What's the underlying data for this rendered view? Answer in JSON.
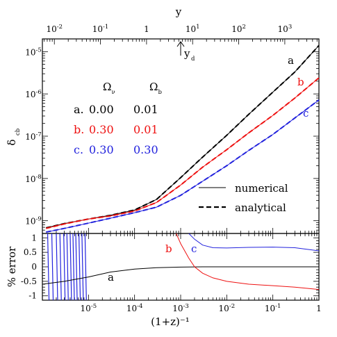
{
  "chart_data": [
    {
      "id": "top-panel",
      "type": "line",
      "xlabel": "(1+z)⁻¹",
      "ylabel": "δ",
      "ylabel_sub": "cb",
      "xscale": "log",
      "yscale": "log",
      "xlim": [
        1e-06,
        1.0
      ],
      "ylim": [
        5e-10,
        2e-05
      ],
      "x_ticklabels": [
        {
          "v": 1e-05,
          "base": "10",
          "exp": "-5"
        },
        {
          "v": 0.0001,
          "base": "10",
          "exp": "-4"
        },
        {
          "v": 0.001,
          "base": "10",
          "exp": "-3"
        },
        {
          "v": 0.01,
          "base": "10",
          "exp": "-2"
        },
        {
          "v": 0.1,
          "base": "10",
          "exp": "-1"
        },
        {
          "v": 1,
          "base": "1",
          "exp": ""
        }
      ],
      "y_ticklabels": [
        {
          "v": 1e-09,
          "base": "10",
          "exp": "-9"
        },
        {
          "v": 1e-08,
          "base": "10",
          "exp": "-8"
        },
        {
          "v": 1e-07,
          "base": "10",
          "exp": "-7"
        },
        {
          "v": 1e-06,
          "base": "10",
          "exp": "-6"
        },
        {
          "v": 1e-05,
          "base": "10",
          "exp": "-5"
        }
      ],
      "top_axis": {
        "label": "y",
        "ticklabels": [
          {
            "v": 0.01,
            "base": "10",
            "exp": "-2"
          },
          {
            "v": 0.1,
            "base": "10",
            "exp": "-1"
          },
          {
            "v": 1,
            "base": "1",
            "exp": ""
          },
          {
            "v": 10,
            "base": "10",
            "exp": "1"
          },
          {
            "v": 100,
            "base": "10",
            "exp": "2"
          },
          {
            "v": 1000,
            "base": "10",
            "exp": "3"
          }
        ],
        "xlim": [
          0.0055,
          5500
        ]
      },
      "marker": {
        "label": "y",
        "sub": "d",
        "y_value": 5.5
      },
      "table": {
        "headers": [
          {
            "sym": "Ω",
            "sub": "ν"
          },
          {
            "sym": "Ω",
            "sub": "b"
          }
        ],
        "rows": [
          {
            "key": "a.",
            "omega_nu": "0.00",
            "omega_b": "0.01",
            "color": "#000000"
          },
          {
            "key": "b.",
            "omega_nu": "0.30",
            "omega_b": "0.01",
            "color": "#ee1111"
          },
          {
            "key": "c.",
            "omega_nu": "0.30",
            "omega_b": "0.30",
            "color": "#2222dd"
          }
        ]
      },
      "legend": {
        "position": "lower-right",
        "entries": [
          {
            "label": "numerical",
            "style": "solid"
          },
          {
            "label": "analytical",
            "style": "dashed"
          }
        ]
      },
      "series": [
        {
          "name": "a",
          "color": "#000000",
          "x": [
            1.2e-06,
            3e-06,
            1e-05,
            3e-05,
            0.0001,
            0.0003,
            0.001,
            0.003,
            0.01,
            0.03,
            0.1,
            0.3,
            1
          ],
          "values": [
            6.8e-10,
            8.6e-10,
            1.1e-09,
            1.35e-09,
            1.8e-09,
            3.2e-09,
            1.05e-08,
            3.2e-08,
            1.05e-07,
            3.3e-07,
            1.1e-06,
            3.3e-06,
            1.4e-05
          ]
        },
        {
          "name": "b",
          "color": "#ee1111",
          "x": [
            1.2e-06,
            3e-06,
            1e-05,
            3e-05,
            0.0001,
            0.0003,
            0.001,
            0.003,
            0.01,
            0.03,
            0.1,
            0.3,
            1
          ],
          "values": [
            6.6e-10,
            8.4e-10,
            1.1e-09,
            1.3e-09,
            1.7e-09,
            2.7e-09,
            7e-09,
            1.85e-08,
            4.8e-08,
            1.2e-07,
            3.1e-07,
            8e-07,
            2.4e-06
          ]
        },
        {
          "name": "c",
          "color": "#2222dd",
          "x": [
            1.2e-06,
            3e-06,
            1e-05,
            3e-05,
            0.0001,
            0.0003,
            0.001,
            0.003,
            0.01,
            0.03,
            0.1,
            0.3,
            1
          ],
          "values": [
            5.4e-10,
            6.6e-10,
            8.8e-10,
            1.15e-09,
            1.55e-09,
            2.1e-09,
            4e-09,
            8.6e-09,
            2e-08,
            4.6e-08,
            1.1e-07,
            2.7e-07,
            7.2e-07
          ]
        }
      ]
    },
    {
      "id": "bottom-panel",
      "type": "line",
      "ylabel": "% error",
      "xscale": "log",
      "xlim": [
        1e-06,
        1.0
      ],
      "ylim": [
        -1.15,
        1.15
      ],
      "y_ticklabels": [
        "1",
        "0.5",
        "0",
        "-0.5",
        "-1"
      ],
      "y_tickvalues": [
        1,
        0.5,
        0,
        -0.5,
        -1
      ],
      "series": [
        {
          "name": "a",
          "color": "#000000",
          "x": [
            1e-06,
            3e-06,
            1e-05,
            3e-05,
            0.0001,
            0.0003,
            0.001,
            0.003,
            0.01,
            0.03,
            0.1,
            0.3,
            1
          ],
          "values": [
            -0.6,
            -0.5,
            -0.35,
            -0.18,
            -0.08,
            -0.03,
            -0.01,
            0.0,
            0.0,
            0.0,
            0.0,
            0.0,
            0.0
          ]
        },
        {
          "name": "b",
          "color": "#ee1111",
          "x": [
            0.0008,
            0.001,
            0.0015,
            0.002,
            0.003,
            0.005,
            0.01,
            0.03,
            0.1,
            0.3,
            1
          ],
          "values": [
            1.15,
            0.8,
            0.3,
            0.0,
            -0.22,
            -0.38,
            -0.5,
            -0.6,
            -0.65,
            -0.7,
            -0.78
          ]
        },
        {
          "name": "c",
          "color": "#2222dd",
          "x": [
            0.0015,
            0.002,
            0.003,
            0.005,
            0.01,
            0.03,
            0.1,
            0.3,
            1
          ],
          "values": [
            1.15,
            0.95,
            0.75,
            0.66,
            0.65,
            0.67,
            0.68,
            0.66,
            0.55
          ]
        }
      ],
      "series_labels": [
        {
          "text": "a",
          "color": "#000000"
        },
        {
          "text": "b",
          "color": "#ee1111"
        },
        {
          "text": "c",
          "color": "#2222dd"
        }
      ]
    }
  ]
}
